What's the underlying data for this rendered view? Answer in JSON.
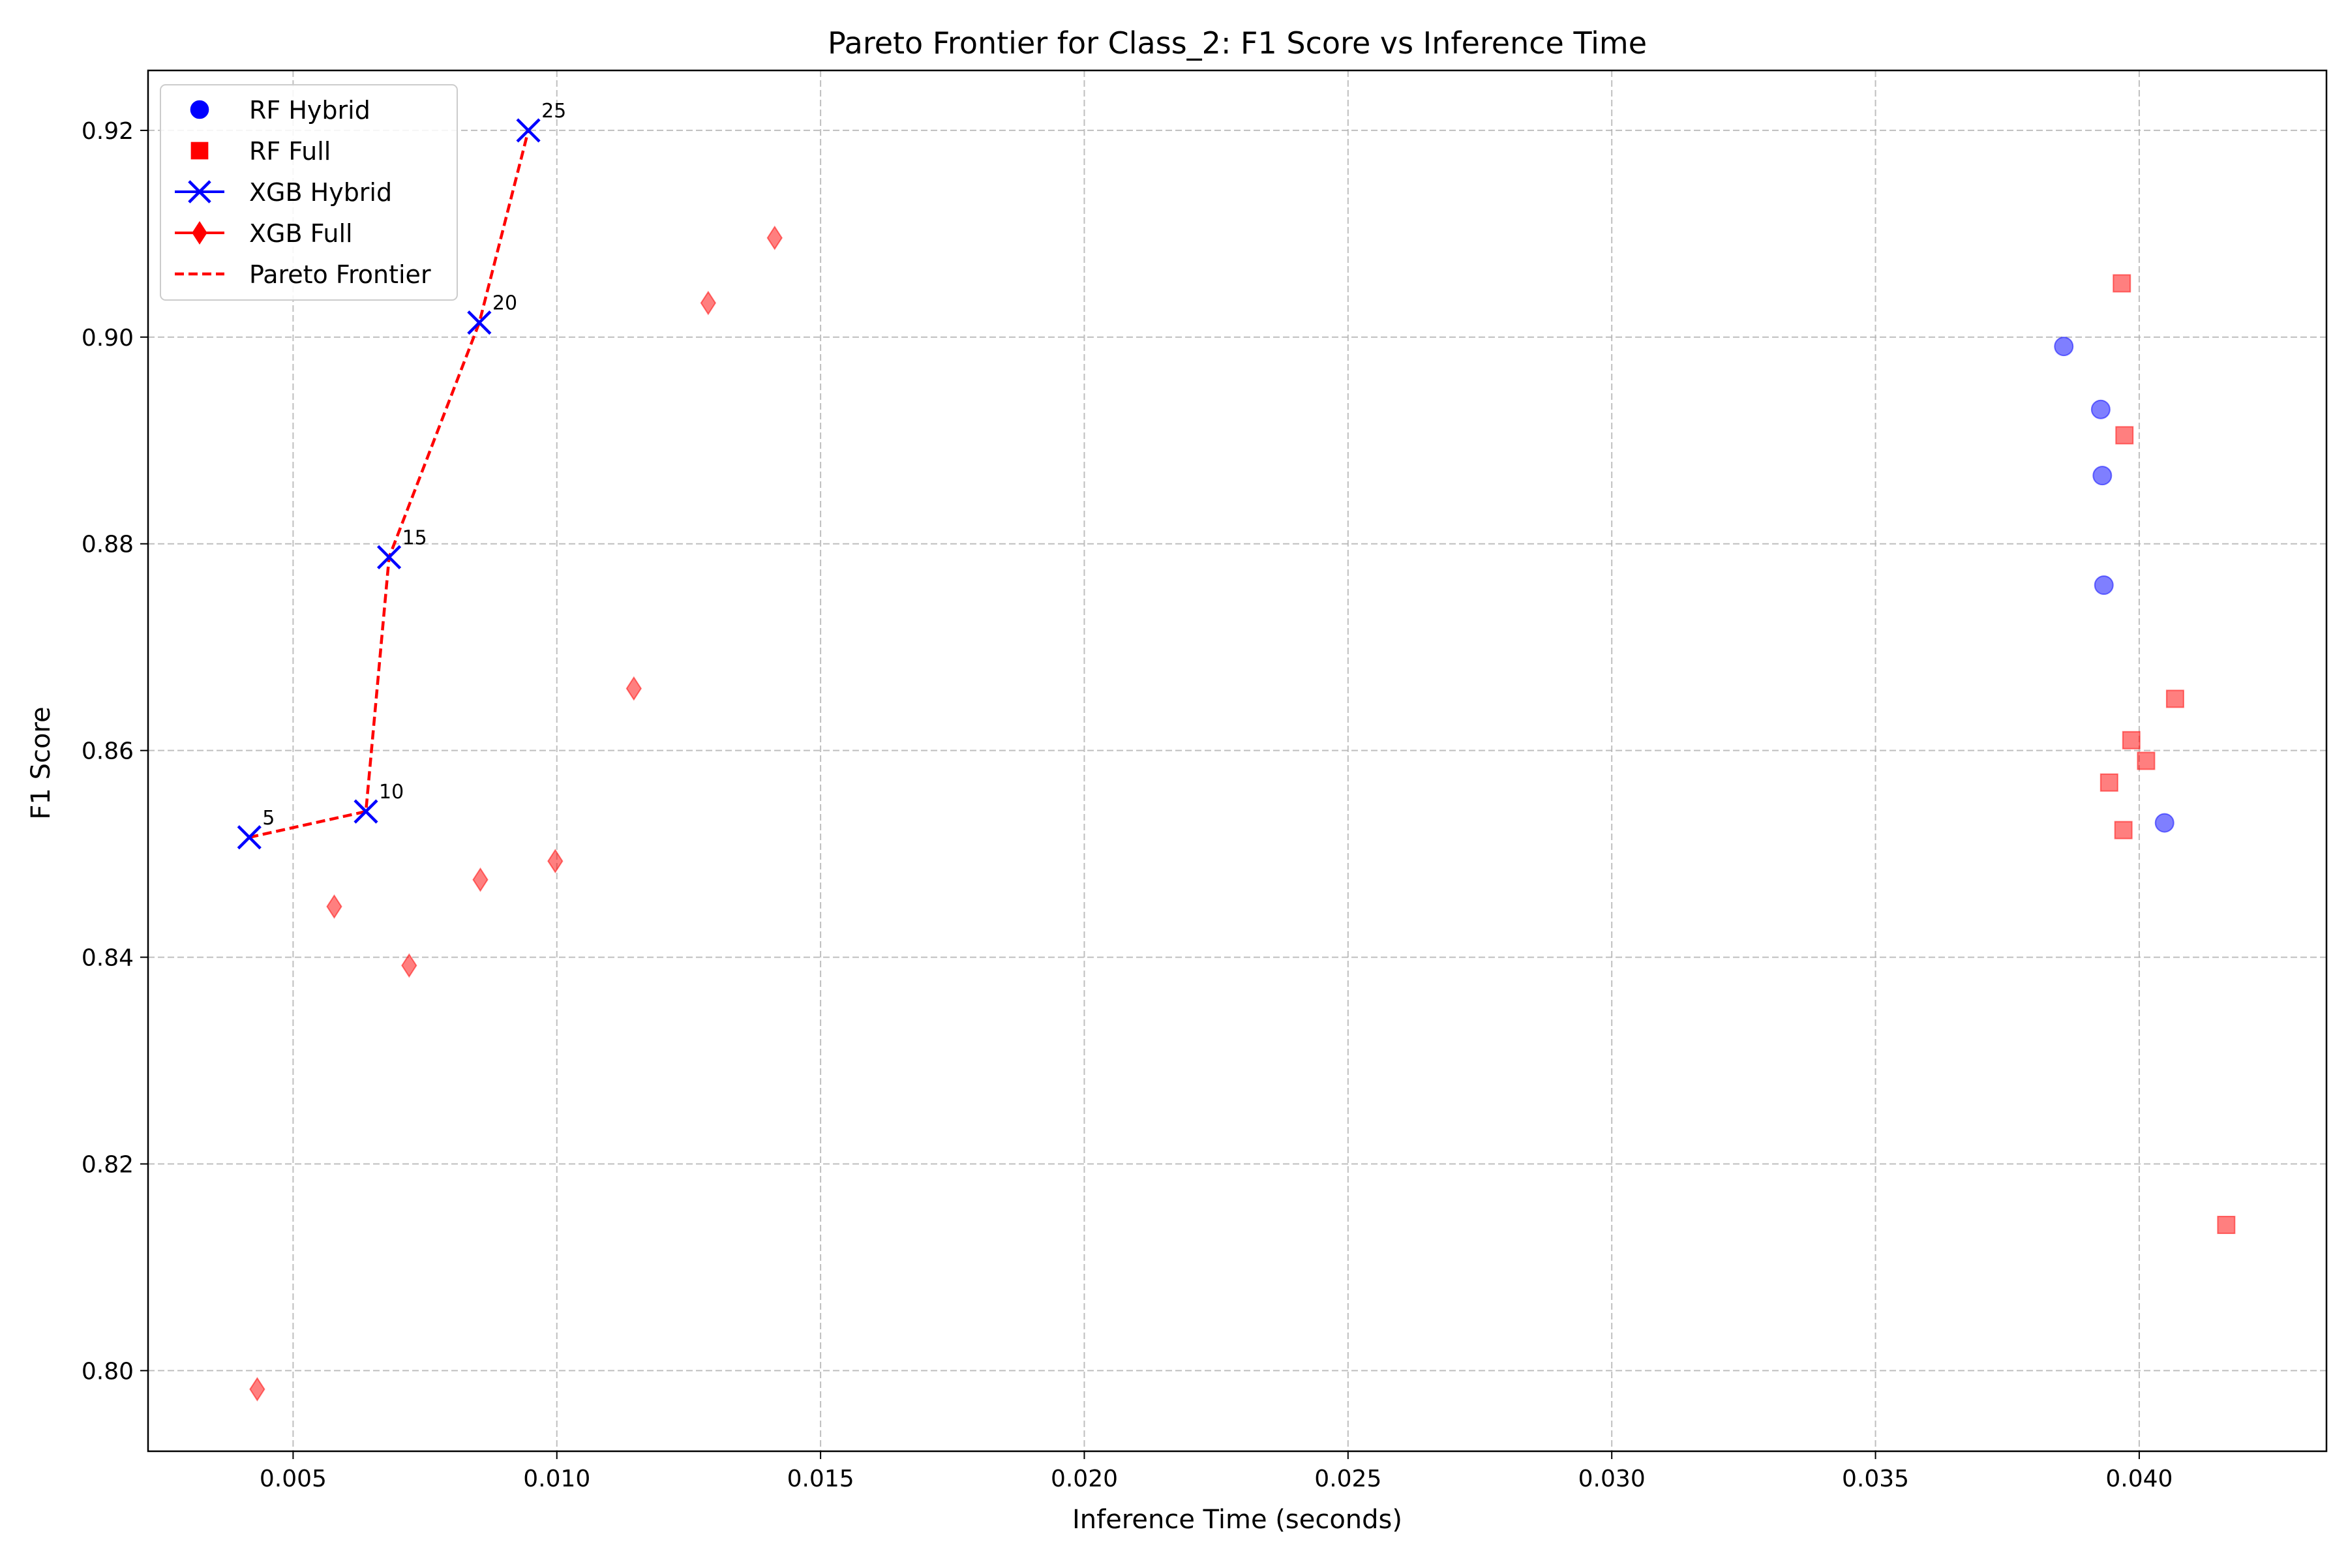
{
  "chart_data": {
    "type": "scatter",
    "title": "Pareto Frontier for Class_2: F1 Score vs Inference Time",
    "xlabel": "Inference Time (seconds)",
    "ylabel": "F1 Score",
    "xlim": [
      0.00225,
      0.04355
    ],
    "ylim": [
      0.7922,
      0.9258
    ],
    "xticks": [
      0.005,
      0.01,
      0.015,
      0.02,
      0.025,
      0.03,
      0.035,
      0.04
    ],
    "xtick_labels": [
      "0.005",
      "0.010",
      "0.015",
      "0.020",
      "0.025",
      "0.030",
      "0.035",
      "0.040"
    ],
    "yticks": [
      0.8,
      0.82,
      0.84,
      0.86,
      0.88,
      0.9,
      0.92
    ],
    "ytick_labels": [
      "0.80",
      "0.82",
      "0.84",
      "0.86",
      "0.88",
      "0.90",
      "0.92"
    ],
    "grid": true,
    "legend_position": "top-left",
    "series": [
      {
        "name": "RF Hybrid",
        "marker": "circle",
        "color": "#0000ff",
        "alpha": 0.5,
        "x": [
          0.03857,
          0.03927,
          0.0393,
          0.03933,
          0.04048
        ],
        "y": [
          0.8991,
          0.893,
          0.8866,
          0.876,
          0.853
        ]
      },
      {
        "name": "RF Full",
        "marker": "square",
        "color": "#ff0000",
        "alpha": 0.5,
        "x": [
          0.03967,
          0.03972,
          0.04068,
          0.03985,
          0.04013,
          0.03943,
          0.0397,
          0.04165
        ],
        "y": [
          0.9052,
          0.8905,
          0.865,
          0.861,
          0.859,
          0.8569,
          0.8523,
          0.8141
        ]
      },
      {
        "name": "XGB Hybrid",
        "marker": "x",
        "color": "#0000ff",
        "alpha": 1.0,
        "x": [
          0.00417,
          0.00638,
          0.00682,
          0.00853,
          0.00946
        ],
        "y": [
          0.8516,
          0.8541,
          0.8787,
          0.9014,
          0.92
        ],
        "point_labels": [
          "5",
          "10",
          "15",
          "20",
          "25"
        ]
      },
      {
        "name": "XGB Full",
        "marker": "diamond",
        "color": "#ff0000",
        "alpha": 0.5,
        "x": [
          0.00432,
          0.00578,
          0.0072,
          0.00855,
          0.00997,
          0.01146,
          0.01287,
          0.01413
        ],
        "y": [
          0.7982,
          0.8449,
          0.8392,
          0.8475,
          0.8493,
          0.866,
          0.9033,
          0.9096
        ]
      },
      {
        "name": "Pareto Frontier",
        "marker": "none",
        "line": "dashed",
        "color": "#ff0000",
        "x": [
          0.00417,
          0.00638,
          0.00682,
          0.00853,
          0.00946
        ],
        "y": [
          0.8516,
          0.8541,
          0.8787,
          0.9014,
          0.92
        ]
      }
    ]
  }
}
